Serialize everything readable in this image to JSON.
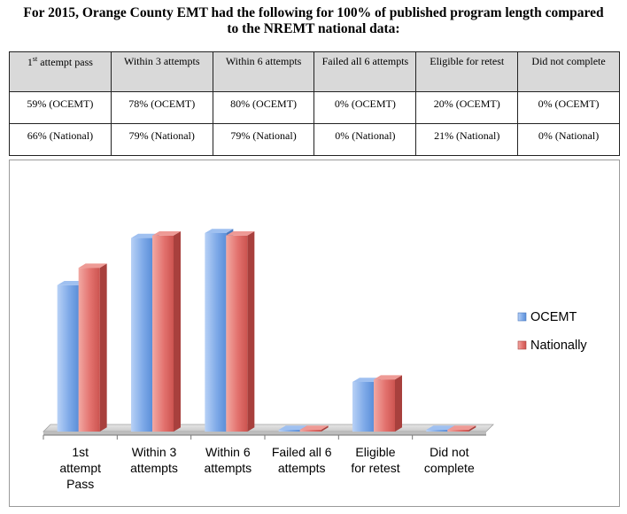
{
  "page": {
    "title_line1": "For 2015, Orange County EMT had the following for 100% of published program length compared",
    "title_line2": "to the NREMT national data:"
  },
  "table": {
    "header": [
      "1st attempt pass",
      "Within 3 attempts",
      "Within 6 attempts",
      "Failed all 6 attempts",
      "Eligible for retest",
      "Did not complete"
    ],
    "rows": [
      [
        "59% (OCEMT)",
        "78% (OCEMT)",
        "80% (OCEMT)",
        "0% (OCEMT)",
        "20% (OCEMT)",
        "0% (OCEMT)"
      ],
      [
        "66% (National)",
        "79% (National)",
        "79% (National)",
        "0% (National)",
        "21% (National)",
        "0% (National)"
      ]
    ]
  },
  "chart_data": {
    "type": "bar",
    "categories": [
      "1st attempt Pass",
      "Within 3 attempts",
      "Within 6 attempts",
      "Failed all 6 attempts",
      "Eligible for retest",
      "Did not complete"
    ],
    "category_lines": [
      [
        "1st",
        "attempt",
        "Pass"
      ],
      [
        "Within 3",
        "attempts"
      ],
      [
        "Within 6",
        "attempts"
      ],
      [
        "Failed all 6",
        "attempts"
      ],
      [
        "Eligible",
        "for retest"
      ],
      [
        "Did not",
        "complete"
      ]
    ],
    "series": [
      {
        "name": "OCEMT",
        "values": [
          59,
          78,
          80,
          0,
          20,
          0
        ],
        "color": "#7faae8"
      },
      {
        "name": "Nationally",
        "values": [
          66,
          79,
          79,
          0,
          21,
          0
        ],
        "color": "#e3726e"
      }
    ],
    "ylim": [
      0,
      100
    ],
    "grid": false,
    "legend_position": "right",
    "style": "3d-column"
  }
}
